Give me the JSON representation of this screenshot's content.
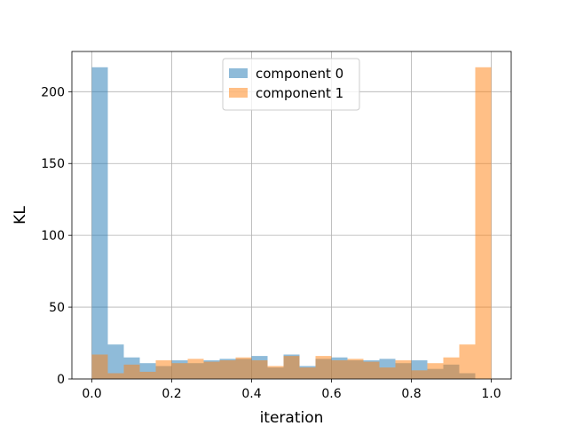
{
  "chart_data": {
    "type": "bar",
    "subtype": "overlapping-histogram",
    "title": "",
    "xlabel": "iteration",
    "ylabel": "KL",
    "xlim": [
      -0.05,
      1.05
    ],
    "ylim": [
      0,
      228
    ],
    "xticks": [
      0.0,
      0.2,
      0.4,
      0.6,
      0.8,
      1.0
    ],
    "xtick_labels": [
      "0.0",
      "0.2",
      "0.4",
      "0.6",
      "0.8",
      "1.0"
    ],
    "yticks": [
      0,
      50,
      100,
      150,
      200
    ],
    "ytick_labels": [
      "0",
      "50",
      "100",
      "150",
      "200"
    ],
    "grid": true,
    "legend_position": "top-center",
    "bin_width": 0.04,
    "bin_starts": [
      0.0,
      0.04,
      0.08,
      0.12,
      0.16,
      0.2,
      0.24,
      0.28,
      0.32,
      0.36,
      0.4,
      0.44,
      0.48,
      0.52,
      0.56,
      0.6,
      0.64,
      0.68,
      0.72,
      0.76,
      0.8,
      0.84,
      0.88,
      0.92,
      0.96
    ],
    "series": [
      {
        "name": "component 0",
        "color": "#1f77b4",
        "alpha": 0.5,
        "values": [
          217,
          24,
          15,
          11,
          9,
          13,
          11,
          13,
          14,
          14,
          16,
          8,
          17,
          9,
          14,
          15,
          13,
          13,
          14,
          11,
          13,
          7,
          10,
          4,
          0
        ]
      },
      {
        "name": "component 1",
        "color": "#ff7f0e",
        "alpha": 0.5,
        "values": [
          17,
          4,
          10,
          5,
          13,
          11,
          14,
          12,
          13,
          15,
          13,
          9,
          16,
          8,
          16,
          13,
          14,
          12,
          8,
          13,
          6,
          11,
          15,
          24,
          217
        ]
      }
    ]
  }
}
